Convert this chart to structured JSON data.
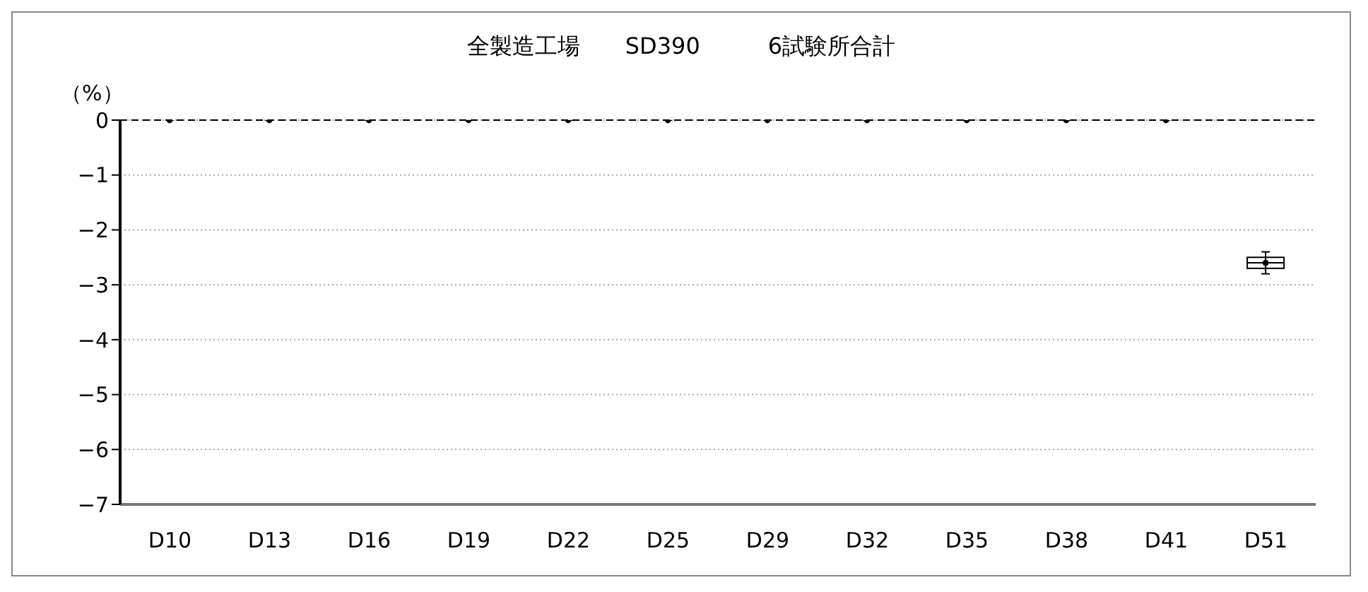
{
  "chart_data": {
    "type": "box",
    "title": "全製造工場　　SD390　　　6試験所合計",
    "ylabel": "（%）",
    "categories": [
      "D10",
      "D13",
      "D16",
      "D19",
      "D22",
      "D25",
      "D29",
      "D32",
      "D35",
      "D38",
      "D41",
      "D51"
    ],
    "boxes": [
      {
        "low": 0,
        "q1": 0,
        "median": 0,
        "q3": 0,
        "high": 0,
        "mean": 0
      },
      {
        "low": 0,
        "q1": 0,
        "median": 0,
        "q3": 0,
        "high": 0,
        "mean": 0
      },
      {
        "low": 0,
        "q1": 0,
        "median": 0,
        "q3": 0,
        "high": 0,
        "mean": 0
      },
      {
        "low": 0,
        "q1": 0,
        "median": 0,
        "q3": 0,
        "high": 0,
        "mean": 0
      },
      {
        "low": 0,
        "q1": 0,
        "median": 0,
        "q3": 0,
        "high": 0,
        "mean": 0
      },
      {
        "low": 0,
        "q1": 0,
        "median": 0,
        "q3": 0,
        "high": 0,
        "mean": 0
      },
      {
        "low": 0,
        "q1": 0,
        "median": 0,
        "q3": 0,
        "high": 0,
        "mean": 0
      },
      {
        "low": 0,
        "q1": 0,
        "median": 0,
        "q3": 0,
        "high": 0,
        "mean": 0
      },
      {
        "low": 0,
        "q1": 0,
        "median": 0,
        "q3": 0,
        "high": 0,
        "mean": 0
      },
      {
        "low": 0,
        "q1": 0,
        "median": 0,
        "q3": 0,
        "high": 0,
        "mean": 0
      },
      {
        "low": 0,
        "q1": 0,
        "median": 0,
        "q3": 0,
        "high": 0,
        "mean": 0
      },
      {
        "low": -2.8,
        "q1": -2.7,
        "median": -2.6,
        "q3": -2.5,
        "high": -2.4,
        "mean": -2.6
      }
    ],
    "ylim": [
      -7,
      0
    ],
    "yticks": [
      0,
      -1,
      -2,
      -3,
      -4,
      -5,
      -6,
      -7
    ],
    "grid": "y",
    "ref_lines": [
      {
        "axis": "y",
        "value": 0,
        "color": "#000000",
        "line_style": "dashed"
      }
    ],
    "color": "#000000"
  }
}
